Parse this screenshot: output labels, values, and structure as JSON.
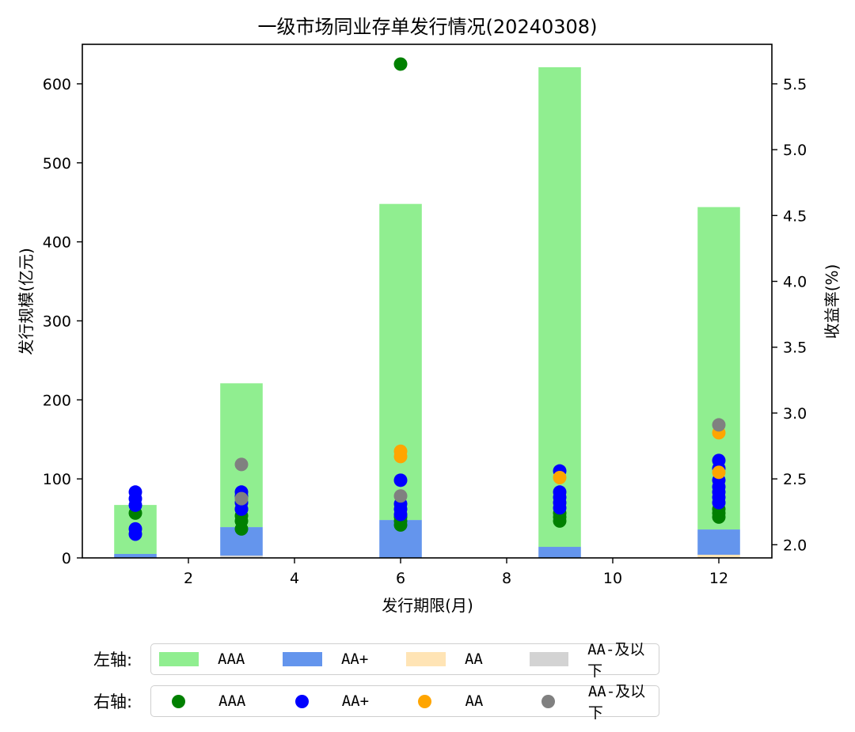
{
  "chart_data": {
    "type": "bar+scatter",
    "title": "一级市场同业存单发行情况(20240308)",
    "xlabel": "发行期限(月)",
    "ylabel_left": "发行规模(亿元)",
    "ylabel_right": "收益率(%)",
    "xlim": [
      0,
      13
    ],
    "ylim_left": [
      0,
      650
    ],
    "ylim_right": [
      1.9,
      5.8
    ],
    "x_ticks": [
      2,
      4,
      6,
      8,
      10,
      12
    ],
    "y_left_ticks": [
      0,
      100,
      200,
      300,
      400,
      500,
      600
    ],
    "y_right_ticks": [
      2.0,
      2.5,
      3.0,
      3.5,
      4.0,
      4.5,
      5.0,
      5.5
    ],
    "y_right_tick_labels": [
      "2.0",
      "2.5",
      "3.0",
      "3.5",
      "4.0",
      "4.5",
      "5.0",
      "5.5"
    ],
    "grid": false,
    "categories": [
      1,
      3,
      6,
      9,
      12
    ],
    "bar_series": [
      {
        "name": "AA-及以下",
        "color": "#d3d3d3",
        "values": [
          0,
          3,
          0,
          0,
          1
        ]
      },
      {
        "name": "AA",
        "color": "#ffe4b5",
        "values": [
          0,
          0,
          0,
          0,
          3
        ]
      },
      {
        "name": "AA+",
        "color": "#6495ed",
        "values": [
          5,
          36,
          48,
          14,
          32
        ]
      },
      {
        "name": "AAA",
        "color": "#90ee90",
        "values": [
          62,
          182,
          400,
          607,
          408
        ]
      }
    ],
    "bar_totals": [
      67,
      221,
      448,
      621,
      444
    ],
    "scatter_series": [
      {
        "name": "AAA",
        "color": "#008000",
        "points": [
          [
            1,
            2.24
          ],
          [
            3,
            2.12
          ],
          [
            3,
            2.18
          ],
          [
            3,
            2.22
          ],
          [
            3,
            2.27
          ],
          [
            6,
            2.15
          ],
          [
            6,
            2.18
          ],
          [
            6,
            2.21
          ],
          [
            6,
            5.65
          ],
          [
            9,
            2.18
          ],
          [
            9,
            2.21
          ],
          [
            9,
            2.24
          ],
          [
            12,
            2.21
          ],
          [
            12,
            2.24
          ],
          [
            12,
            2.27
          ]
        ]
      },
      {
        "name": "AA+",
        "color": "#0000ff",
        "points": [
          [
            1,
            2.08
          ],
          [
            1,
            2.12
          ],
          [
            1,
            2.3
          ],
          [
            1,
            2.35
          ],
          [
            1,
            2.4
          ],
          [
            3,
            2.27
          ],
          [
            3,
            2.32
          ],
          [
            3,
            2.37
          ],
          [
            3,
            2.4
          ],
          [
            6,
            2.23
          ],
          [
            6,
            2.27
          ],
          [
            6,
            2.31
          ],
          [
            6,
            2.49
          ],
          [
            9,
            2.28
          ],
          [
            9,
            2.32
          ],
          [
            9,
            2.36
          ],
          [
            9,
            2.4
          ],
          [
            9,
            2.56
          ],
          [
            12,
            2.32
          ],
          [
            12,
            2.36
          ],
          [
            12,
            2.4
          ],
          [
            12,
            2.44
          ],
          [
            12,
            2.49
          ],
          [
            12,
            2.58
          ],
          [
            12,
            2.64
          ]
        ]
      },
      {
        "name": "AA",
        "color": "#ffa500",
        "points": [
          [
            6,
            2.67
          ],
          [
            6,
            2.71
          ],
          [
            9,
            2.51
          ],
          [
            12,
            2.55
          ],
          [
            12,
            2.85
          ]
        ]
      },
      {
        "name": "AA-及以下",
        "color": "#808080",
        "points": [
          [
            3,
            2.35
          ],
          [
            3,
            2.61
          ],
          [
            6,
            2.37
          ],
          [
            12,
            2.91
          ]
        ]
      }
    ]
  },
  "legend": {
    "left_prefix": "左轴:",
    "right_prefix": "右轴:",
    "left_items": [
      {
        "label": "AAA",
        "color": "#90ee90"
      },
      {
        "label": "AA+",
        "color": "#6495ed"
      },
      {
        "label": "AA",
        "color": "#ffe4b5"
      },
      {
        "label": "AA-及以下",
        "color": "#d3d3d3"
      }
    ],
    "right_items": [
      {
        "label": "AAA",
        "color": "#008000"
      },
      {
        "label": "AA+",
        "color": "#0000ff"
      },
      {
        "label": "AA",
        "color": "#ffa500"
      },
      {
        "label": "AA-及以下",
        "color": "#808080"
      }
    ]
  }
}
